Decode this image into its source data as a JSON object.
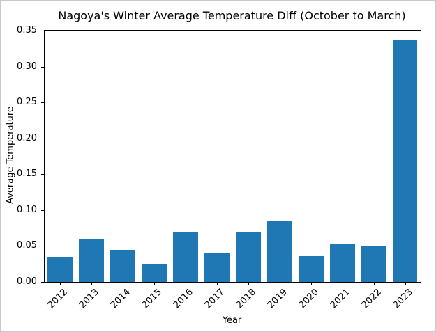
{
  "chart_data": {
    "type": "bar",
    "title": "Nagoya's Winter Average Temperature Diff (October to March)",
    "xlabel": "Year",
    "ylabel": "Average Temperature",
    "categories": [
      "2012",
      "2013",
      "2014",
      "2015",
      "2016",
      "2017",
      "2018",
      "2019",
      "2020",
      "2021",
      "2022",
      "2023"
    ],
    "values": [
      0.035,
      0.06,
      0.045,
      0.025,
      0.07,
      0.04,
      0.07,
      0.085,
      0.036,
      0.053,
      0.05,
      0.336
    ],
    "ylim": [
      0,
      0.35
    ],
    "yticks": [
      0.0,
      0.05,
      0.1,
      0.15,
      0.2,
      0.25,
      0.3,
      0.35
    ],
    "bar_color": "#1f77b4",
    "grid": false,
    "legend": null
  }
}
